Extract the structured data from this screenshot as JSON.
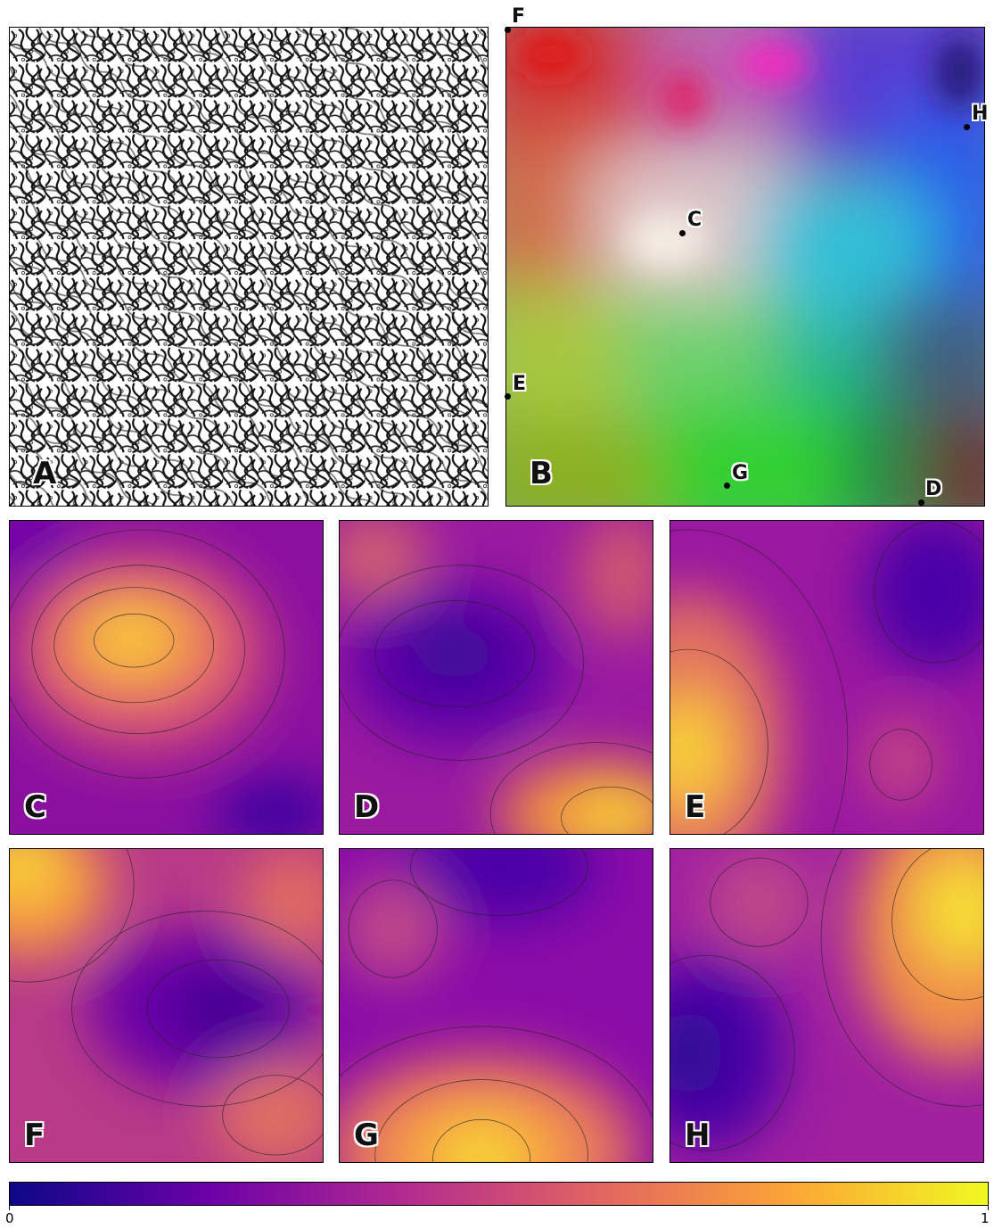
{
  "panels": {
    "A": {
      "label": "A"
    },
    "B": {
      "label": "B"
    },
    "C": {
      "label": "C"
    },
    "D": {
      "label": "D"
    },
    "E": {
      "label": "E"
    },
    "F": {
      "label": "F"
    },
    "G": {
      "label": "G"
    },
    "H": {
      "label": "H"
    }
  },
  "markers": [
    {
      "label": "F"
    },
    {
      "label": "H"
    },
    {
      "label": "C"
    },
    {
      "label": "E"
    },
    {
      "label": "G"
    },
    {
      "label": "D"
    }
  ],
  "colorbar": {
    "min_label": "0",
    "max_label": "1",
    "colormap": [
      "#0d0887",
      "#6a00a8",
      "#b12a90",
      "#e16462",
      "#fca636",
      "#f0f921"
    ]
  }
}
